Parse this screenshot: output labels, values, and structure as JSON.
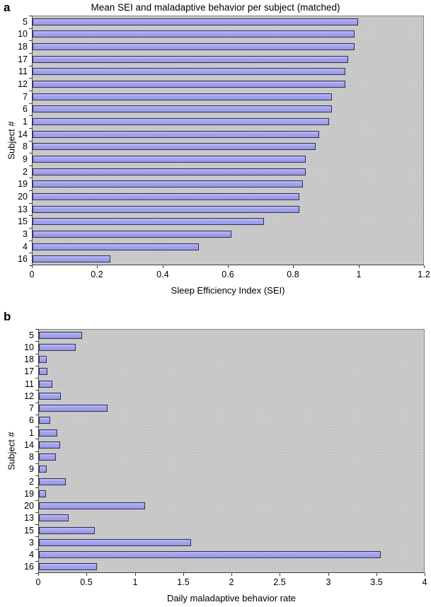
{
  "figure_title_a": "Mean SEI and maladaptive behavior per subject (matched)",
  "panel_labels": {
    "a": "a",
    "b": "b"
  },
  "colors": {
    "bar_fill": "#a2a2ec",
    "bar_border": "#2e2e52",
    "plot_background": "#cacaca",
    "plot_border": "#858585",
    "axis": "#3f3f3f",
    "text": "#000000"
  },
  "chart_data": [
    {
      "type": "bar",
      "orientation": "horizontal",
      "panel_label": "a",
      "title": "Mean SEI and maladaptive behavior per subject (matched)",
      "categories": [
        "5",
        "10",
        "18",
        "17",
        "11",
        "12",
        "7",
        "6",
        "1",
        "14",
        "8",
        "9",
        "2",
        "19",
        "20",
        "13",
        "15",
        "3",
        "4",
        "16"
      ],
      "values": [
        1.0,
        0.99,
        0.99,
        0.97,
        0.96,
        0.96,
        0.92,
        0.92,
        0.91,
        0.88,
        0.87,
        0.84,
        0.84,
        0.83,
        0.82,
        0.82,
        0.71,
        0.61,
        0.51,
        0.24
      ],
      "xlabel": "Sleep Efficiency Index (SEI)",
      "ylabel": "Subject #",
      "xlim": [
        0,
        1.2
      ],
      "xtick_labels": [
        "0",
        "0.2",
        "0.4",
        "0.6",
        "0.8",
        "1",
        "1.2"
      ],
      "xtick_values": [
        0,
        0.2,
        0.4,
        0.6,
        0.8,
        1,
        1.2
      ],
      "grid": false,
      "legend": "none"
    },
    {
      "type": "bar",
      "orientation": "horizontal",
      "panel_label": "b",
      "title": "",
      "categories": [
        "5",
        "10",
        "18",
        "17",
        "11",
        "12",
        "7",
        "6",
        "1",
        "14",
        "8",
        "9",
        "2",
        "19",
        "20",
        "13",
        "15",
        "3",
        "4",
        "16"
      ],
      "values": [
        0.45,
        0.38,
        0.08,
        0.09,
        0.14,
        0.23,
        0.71,
        0.12,
        0.19,
        0.22,
        0.18,
        0.08,
        0.28,
        0.07,
        1.1,
        0.31,
        0.58,
        1.58,
        3.55,
        0.6
      ],
      "xlabel": "Daily maladaptive behavior rate",
      "ylabel": "Subject #",
      "xlim": [
        0,
        4
      ],
      "xtick_labels": [
        "0",
        "0.5",
        "1",
        "1.5",
        "2",
        "2.5",
        "3",
        "3.5",
        "4"
      ],
      "xtick_values": [
        0,
        0.5,
        1,
        1.5,
        2,
        2.5,
        3,
        3.5,
        4
      ],
      "grid": false,
      "legend": "none"
    }
  ]
}
